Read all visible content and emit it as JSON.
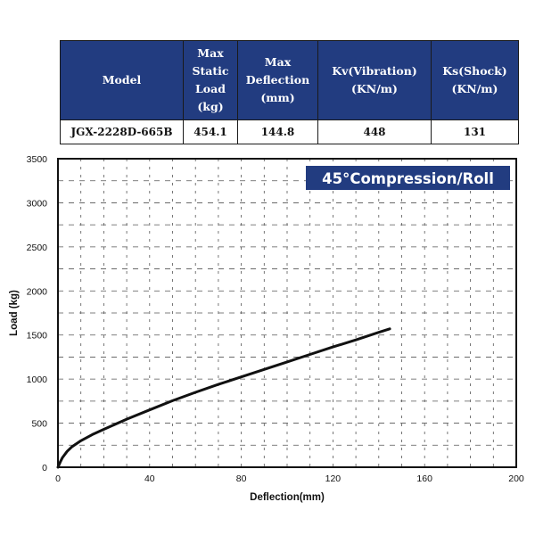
{
  "table": {
    "headers": [
      "Model",
      "Max Static Load (kg)",
      "Max Deflection (mm)",
      "Kv(Vibration) (KN/m)",
      "Ks(Shock) (KN/m)"
    ],
    "header_lines": [
      [
        "Model"
      ],
      [
        "Max",
        "Static",
        "Load",
        "(kg)"
      ],
      [
        "Max",
        "Deflection",
        "(mm)"
      ],
      [
        "Kv(Vibration)",
        "(KN/m)"
      ],
      [
        "Ks(Shock)",
        "(KN/m)"
      ]
    ],
    "row": [
      "JGX-2228D-665B",
      "454.1",
      "144.8",
      "448",
      "131"
    ]
  },
  "colors": {
    "header_bg": "#223c80",
    "badge_bg": "#223c80",
    "curve": "#111111",
    "grid": "#555555"
  },
  "chart_data": {
    "type": "line",
    "badge": "45°Compression/Roll",
    "xlabel": "Deflection(mm)",
    "ylabel": "Load (kg)",
    "xlim": [
      0,
      200
    ],
    "ylim": [
      0,
      3500
    ],
    "xticks": [
      0,
      40,
      80,
      120,
      160,
      200
    ],
    "yticks": [
      0,
      500,
      1000,
      1500,
      2000,
      2500,
      3000,
      3500
    ],
    "grid": "dashed",
    "series": [
      {
        "x": [
          0,
          1,
          2,
          4,
          6,
          10,
          15,
          20,
          30,
          40,
          50,
          60,
          70,
          80,
          90,
          100,
          110,
          120,
          130,
          140,
          144.8
        ],
        "y": [
          0,
          60,
          110,
          180,
          230,
          300,
          370,
          430,
          545,
          650,
          755,
          850,
          940,
          1025,
          1110,
          1195,
          1280,
          1365,
          1445,
          1530,
          1570
        ]
      }
    ]
  }
}
